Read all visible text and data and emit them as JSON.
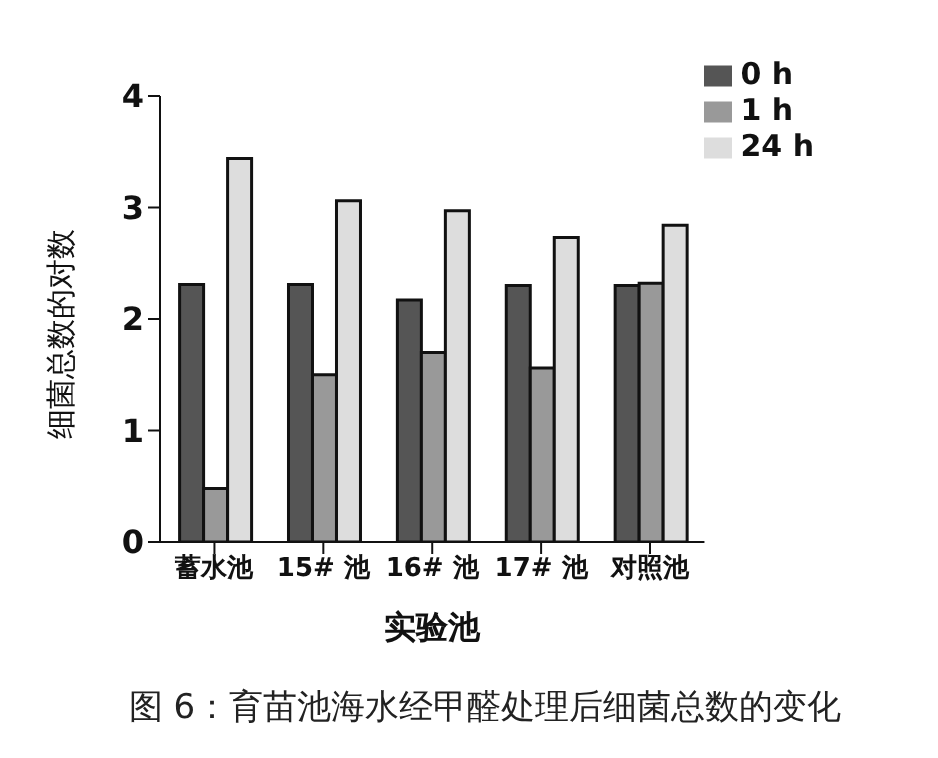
{
  "chart_data": {
    "type": "bar",
    "xlabel": "实验池",
    "ylabel": "细菌总数的对数",
    "categories": [
      "蓄水池",
      "15# 池",
      "16# 池",
      "17# 池",
      "对照池"
    ],
    "series": [
      {
        "name": "0 h",
        "color": "#555555",
        "values": [
          2.31,
          2.31,
          2.17,
          2.3,
          2.3
        ]
      },
      {
        "name": "1 h",
        "color": "#999999",
        "values": [
          0.48,
          1.5,
          1.7,
          1.56,
          2.32
        ]
      },
      {
        "name": "24 h",
        "color": "#dddddd",
        "values": [
          3.44,
          3.06,
          2.97,
          2.73,
          2.84
        ]
      }
    ],
    "ylim": [
      0,
      4
    ],
    "yticks": [
      0,
      1,
      2,
      3,
      4
    ],
    "legend": "top right",
    "annotations": [
      "图 6：育苗池海水经甲醛处理后细菌总数的变化"
    ]
  }
}
